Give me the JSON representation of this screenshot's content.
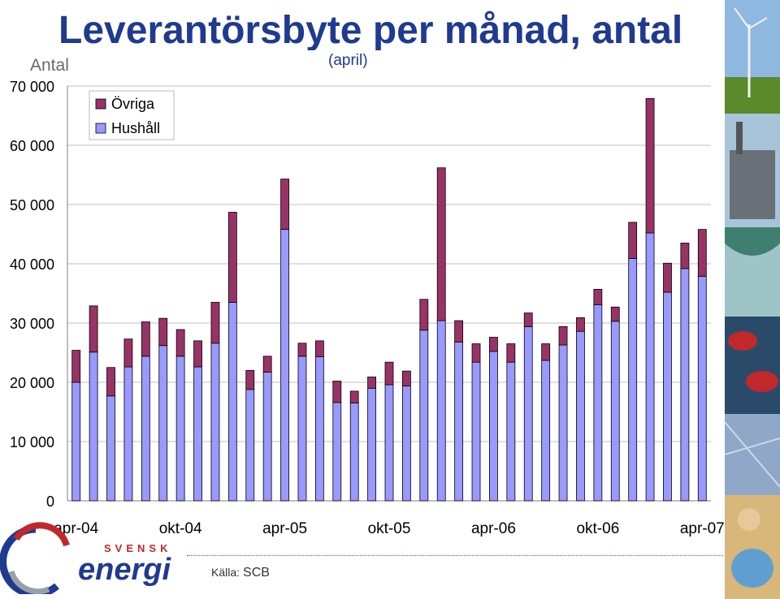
{
  "page": {
    "source_label": "Källa:",
    "source_value": "SCB",
    "logo_top": "SVENSK",
    "logo_bottom": "energi"
  },
  "colors": {
    "hushall": "#9999ff",
    "ovriga": "#993366",
    "title": "#1f3a8f",
    "grid": "#c0c0c0"
  },
  "chart_data": {
    "type": "stacked-bar",
    "title": "Leverantörsbyte per månad, antal",
    "subtitle": "(april)",
    "ylabel": "Antal",
    "ylim": [
      0,
      70000
    ],
    "yticks": [
      0,
      10000,
      20000,
      30000,
      40000,
      50000,
      60000,
      70000
    ],
    "ytick_labels": [
      "0",
      "10 000",
      "20 000",
      "30 000",
      "40 000",
      "50 000",
      "60 000",
      "70 000"
    ],
    "x_tick_labels": [
      {
        "label": "apr-04",
        "index": 0
      },
      {
        "label": "okt-04",
        "index": 6
      },
      {
        "label": "apr-05",
        "index": 12
      },
      {
        "label": "okt-05",
        "index": 18
      },
      {
        "label": "apr-06",
        "index": 24
      },
      {
        "label": "okt-06",
        "index": 30
      },
      {
        "label": "apr-07",
        "index": 36
      }
    ],
    "legend": [
      {
        "name": "Övriga",
        "color": "#993366"
      },
      {
        "name": "Hushåll",
        "color": "#9999ff"
      }
    ],
    "legend_position": "top-left",
    "series": [
      {
        "name": "Hushåll",
        "values": [
          20000,
          25100,
          17700,
          22600,
          24400,
          26200,
          24400,
          22600,
          26600,
          33500,
          18800,
          21700,
          45800,
          24400,
          24300,
          16600,
          16500,
          19000,
          19600,
          19400,
          28800,
          30400,
          26800,
          23400,
          25200,
          23400,
          29400,
          23700,
          26300,
          28600,
          33100,
          30300,
          40900,
          45200,
          35200,
          39200,
          37900
        ]
      },
      {
        "name": "Övriga",
        "values": [
          5400,
          7800,
          4800,
          4700,
          5800,
          4600,
          4500,
          4400,
          6900,
          15200,
          3200,
          2700,
          8500,
          2200,
          2700,
          3600,
          2000,
          1900,
          3800,
          2500,
          5200,
          25800,
          3600,
          3100,
          2400,
          3100,
          2300,
          2800,
          3100,
          2300,
          2600,
          2400,
          6100,
          22700,
          4900,
          4300,
          7900
        ]
      }
    ]
  }
}
